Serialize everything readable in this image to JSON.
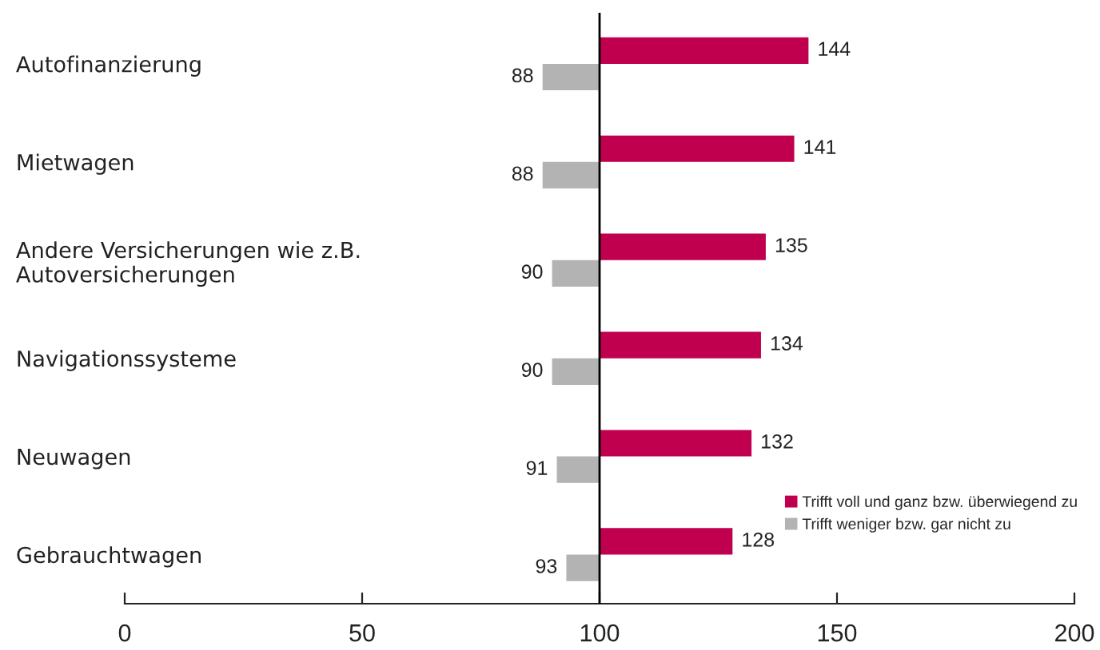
{
  "chart_data": {
    "type": "bar",
    "orientation": "horizontal",
    "categories": [
      "Autofinanzierung",
      "Mietwagen",
      "Andere Versicherungen wie z.B.\nAutoversicherungen",
      "Navigationssysteme",
      "Neuwagen",
      "Gebrauchtwagen"
    ],
    "series": [
      {
        "name": "Trifft voll und ganz bzw. überwiegend zu",
        "color": "#c0004e",
        "base": [
          100,
          100,
          100,
          100,
          100,
          100
        ],
        "values": [
          44,
          41,
          35,
          34,
          32,
          28
        ],
        "value_labels": [
          "144",
          "141",
          "135",
          "134",
          "132",
          "128"
        ]
      },
      {
        "name": "Trifft weniger bzw. gar nicht zu",
        "color": "#b3b3b3",
        "base": [
          100,
          100,
          100,
          100,
          100,
          100
        ],
        "values": [
          -12,
          -12,
          -10,
          -10,
          -9,
          -7
        ],
        "value_labels": [
          "88",
          "88",
          "90",
          "90",
          "91",
          "93"
        ]
      }
    ],
    "xlim": [
      0,
      200
    ],
    "xticks": [
      0,
      50,
      100,
      150,
      200
    ],
    "ref_lines": [
      {
        "axis": "x",
        "value": 100,
        "color": "#000000"
      }
    ],
    "legend": "bottom right"
  }
}
